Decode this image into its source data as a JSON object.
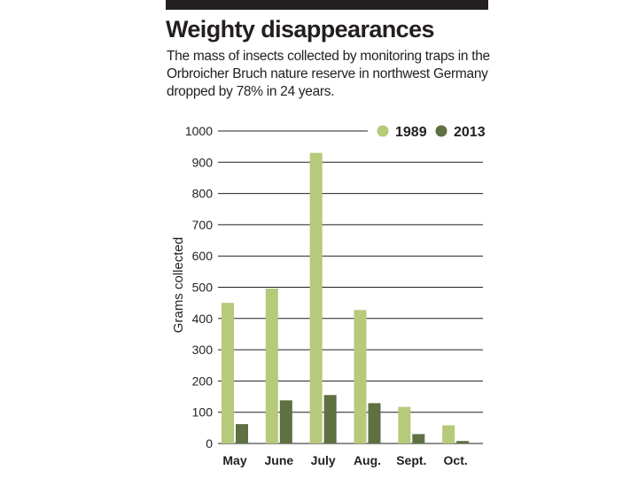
{
  "header": {
    "title": "Weighty disappearances",
    "subtitle": "The mass of insects collected by monitoring traps in the Orbroicher Bruch nature reserve in northwest Germany dropped by 78% in 24 years."
  },
  "colors": {
    "series_1989": "#b7c97a",
    "series_2013": "#5f7042",
    "gridline": "#231f20",
    "text": "#231f20",
    "top_bar": "#231f20"
  },
  "chart_data": {
    "type": "bar",
    "title": "Weighty disappearances",
    "xlabel": "",
    "ylabel": "Grams collected",
    "ylim": [
      0,
      1000
    ],
    "yticks": [
      0,
      100,
      200,
      300,
      400,
      500,
      600,
      700,
      800,
      900,
      1000
    ],
    "grid": true,
    "legend_position": "top-right",
    "categories": [
      "May",
      "June",
      "July",
      "Aug.",
      "Sept.",
      "Oct."
    ],
    "series": [
      {
        "name": "1989",
        "values": [
          450,
          496,
          930,
          427,
          117,
          58
        ]
      },
      {
        "name": "2013",
        "values": [
          62,
          138,
          155,
          129,
          30,
          8
        ]
      }
    ]
  }
}
